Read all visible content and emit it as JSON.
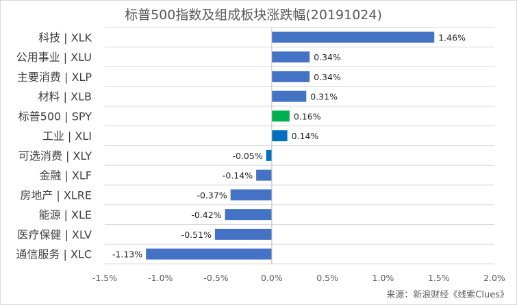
{
  "chart_data": {
    "type": "bar",
    "orientation": "horizontal",
    "title": "标普500指数及组成板块涨跌幅(20191024)",
    "categories": [
      "科技 | XLK",
      "公用事业 | XLU",
      "主要消费 | XLP",
      "材料 | XLB",
      "标普500 | SPY",
      "工业 | XLI",
      "可选消费 | XLY",
      "金融 | XLF",
      "房地产 | XLRE",
      "能源 | XLE",
      "医疗保健 | XLV",
      "通信服务 | XLC"
    ],
    "values": [
      1.46,
      0.34,
      0.34,
      0.31,
      0.16,
      0.14,
      -0.05,
      -0.14,
      -0.37,
      -0.42,
      -0.51,
      -1.13
    ],
    "data_labels": [
      "1.46%",
      "0.34%",
      "0.34%",
      "0.31%",
      "0.16%",
      "0.14%",
      "-0.05%",
      "-0.14%",
      "-0.37%",
      "-0.42%",
      "-0.51%",
      "-1.13%"
    ],
    "colors": [
      "#4472c4",
      "#4472c4",
      "#4472c4",
      "#4472c4",
      "#00b050",
      "#0070c0",
      "#0070c0",
      "#4472c4",
      "#4472c4",
      "#4472c4",
      "#4472c4",
      "#4472c4"
    ],
    "xlim": [
      -1.5,
      2.0
    ],
    "xticks": [
      -1.5,
      -1.0,
      -0.5,
      0.0,
      0.5,
      1.0,
      1.5,
      2.0
    ],
    "xtick_labels": [
      "-1.5%",
      "-1.0%",
      "-0.5%",
      "0.0%",
      "0.5%",
      "1.0%",
      "1.5%",
      "2.0%"
    ],
    "grid": "horizontal-row-lines",
    "legend": "none"
  },
  "source_note": "来源：新浪财经《线索Clues》"
}
